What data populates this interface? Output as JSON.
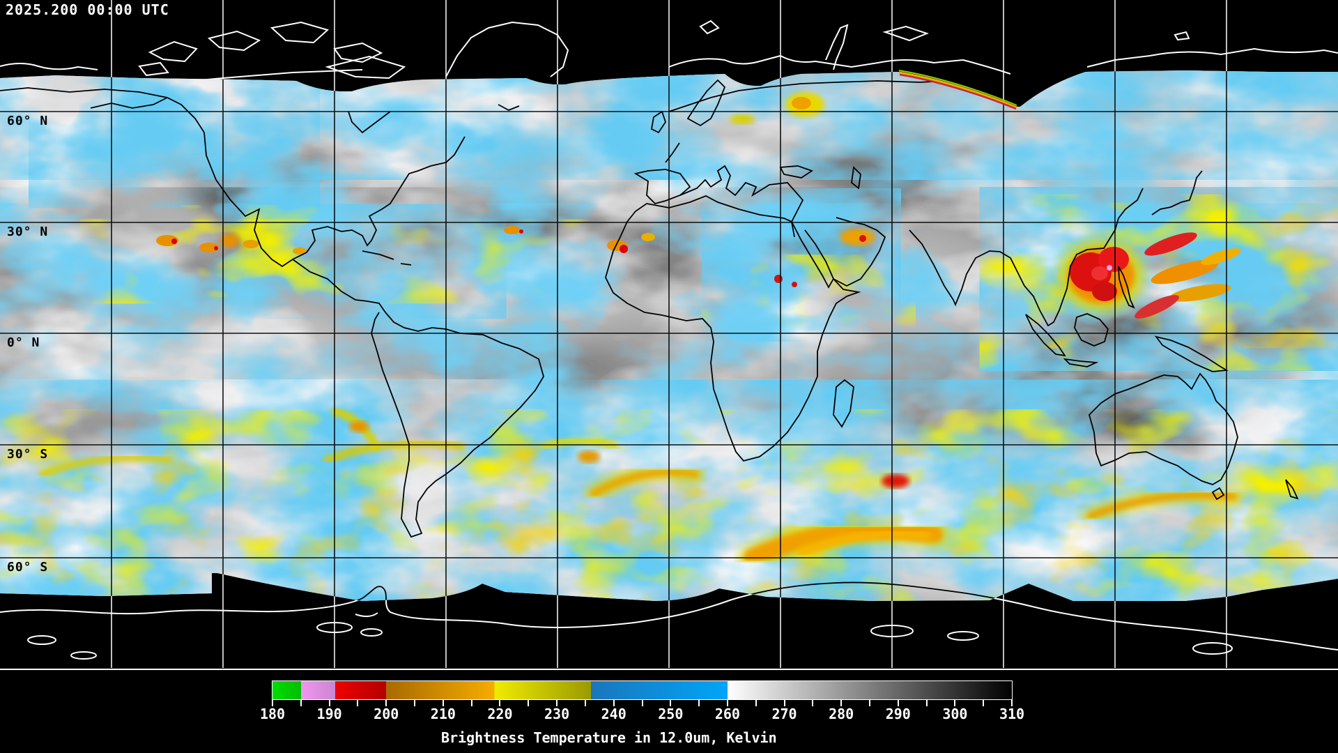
{
  "header": {
    "timestamp": "2025.200 00:00 UTC"
  },
  "map": {
    "latitude_labels": [
      {
        "text": "60° N",
        "lat_deg": 60
      },
      {
        "text": "30° N",
        "lat_deg": 30
      },
      {
        "text": "0° N",
        "lat_deg": 0
      },
      {
        "text": "30° S",
        "lat_deg": -30
      },
      {
        "text": "60° S",
        "lat_deg": -60
      }
    ],
    "grid": {
      "lon_spacing_deg": 30,
      "lat_spacing_deg": 30
    }
  },
  "colorbar": {
    "title": "Brightness Temperature in 12.0um, Kelvin",
    "unit": "Kelvin",
    "min": 180,
    "max": 310,
    "minor_tick_step": 5,
    "label_step": 10,
    "tick_labels": [
      "180",
      "190",
      "200",
      "210",
      "220",
      "230",
      "240",
      "250",
      "260",
      "270",
      "280",
      "290",
      "300",
      "310"
    ],
    "segments": [
      {
        "name": "green",
        "from": 180,
        "to": 185,
        "color": "#00DC00",
        "color2": "#00BE00"
      },
      {
        "name": "violet",
        "from": 185,
        "to": 191,
        "color": "#F295F2",
        "color2": "#C987CF"
      },
      {
        "name": "red",
        "from": 191,
        "to": 200,
        "color": "#EE0000",
        "color2": "#B40000"
      },
      {
        "name": "orange",
        "from": 200,
        "to": 219,
        "color": "#A96A00",
        "color2": "#F5AD00"
      },
      {
        "name": "yellow",
        "from": 219,
        "to": 236,
        "color": "#F0EC00",
        "color2": "#9A9A00"
      },
      {
        "name": "blue",
        "from": 236,
        "to": 260,
        "color": "#1B76BC",
        "color2": "#00A5F8"
      },
      {
        "name": "grayscale",
        "from": 260,
        "to": 310,
        "color": "#FFFFFF",
        "color2": "#000000"
      }
    ]
  }
}
